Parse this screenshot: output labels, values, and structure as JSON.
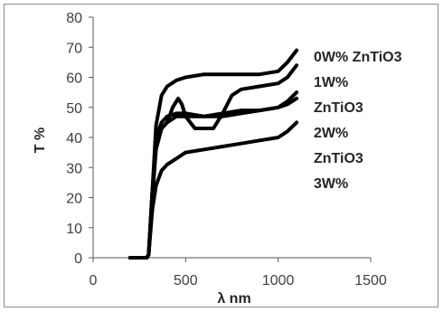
{
  "chart_data": {
    "type": "line",
    "xlabel": "λ nm",
    "ylabel": "T %",
    "xlim": [
      0,
      1500
    ],
    "ylim": [
      0,
      80
    ],
    "x_ticks": [
      0,
      500,
      1000,
      1500
    ],
    "y_ticks": [
      0,
      10,
      20,
      30,
      40,
      50,
      60,
      70,
      80
    ],
    "grid": false,
    "legend_lines": [
      "0W% ZnTiO3",
      "1W%",
      "ZnTiO3",
      "2W%",
      "ZnTiO3",
      "3W%"
    ],
    "series": [
      {
        "values": [
          [
            200,
            0
          ],
          [
            290,
            0
          ],
          [
            300,
            1
          ],
          [
            320,
            22
          ],
          [
            340,
            44
          ],
          [
            370,
            54
          ],
          [
            400,
            57
          ],
          [
            450,
            59
          ],
          [
            500,
            60
          ],
          [
            600,
            61
          ],
          [
            700,
            61
          ],
          [
            800,
            61
          ],
          [
            900,
            61
          ],
          [
            1000,
            62
          ],
          [
            1050,
            65
          ],
          [
            1100,
            69
          ]
        ]
      },
      {
        "values": [
          [
            200,
            0
          ],
          [
            290,
            0
          ],
          [
            300,
            1
          ],
          [
            320,
            20
          ],
          [
            340,
            36
          ],
          [
            370,
            43
          ],
          [
            400,
            45
          ],
          [
            430,
            50
          ],
          [
            460,
            53
          ],
          [
            480,
            51
          ],
          [
            500,
            47
          ],
          [
            550,
            43
          ],
          [
            600,
            43
          ],
          [
            650,
            43
          ],
          [
            700,
            48
          ],
          [
            750,
            54
          ],
          [
            800,
            56
          ],
          [
            900,
            57
          ],
          [
            1000,
            58
          ],
          [
            1050,
            60
          ],
          [
            1100,
            64
          ]
        ]
      },
      {
        "values": [
          [
            200,
            0
          ],
          [
            290,
            0
          ],
          [
            300,
            1
          ],
          [
            320,
            22
          ],
          [
            340,
            40
          ],
          [
            370,
            45
          ],
          [
            400,
            47
          ],
          [
            450,
            48
          ],
          [
            500,
            48
          ],
          [
            600,
            47
          ],
          [
            700,
            47
          ],
          [
            800,
            48
          ],
          [
            900,
            49
          ],
          [
            1000,
            50
          ],
          [
            1050,
            52
          ],
          [
            1100,
            55
          ]
        ]
      },
      {
        "values": [
          [
            200,
            0
          ],
          [
            290,
            0
          ],
          [
            300,
            1
          ],
          [
            320,
            22
          ],
          [
            340,
            38
          ],
          [
            370,
            43
          ],
          [
            400,
            45
          ],
          [
            450,
            47
          ],
          [
            500,
            47
          ],
          [
            600,
            47
          ],
          [
            700,
            48
          ],
          [
            800,
            49
          ],
          [
            900,
            49
          ],
          [
            1000,
            50
          ],
          [
            1050,
            51
          ],
          [
            1100,
            53
          ]
        ]
      },
      {
        "values": [
          [
            200,
            0
          ],
          [
            290,
            0
          ],
          [
            300,
            1
          ],
          [
            320,
            16
          ],
          [
            340,
            24
          ],
          [
            370,
            29
          ],
          [
            400,
            31
          ],
          [
            450,
            33
          ],
          [
            500,
            35
          ],
          [
            600,
            36
          ],
          [
            700,
            37
          ],
          [
            800,
            38
          ],
          [
            900,
            39
          ],
          [
            1000,
            40
          ],
          [
            1050,
            42
          ],
          [
            1100,
            45
          ]
        ]
      }
    ]
  }
}
